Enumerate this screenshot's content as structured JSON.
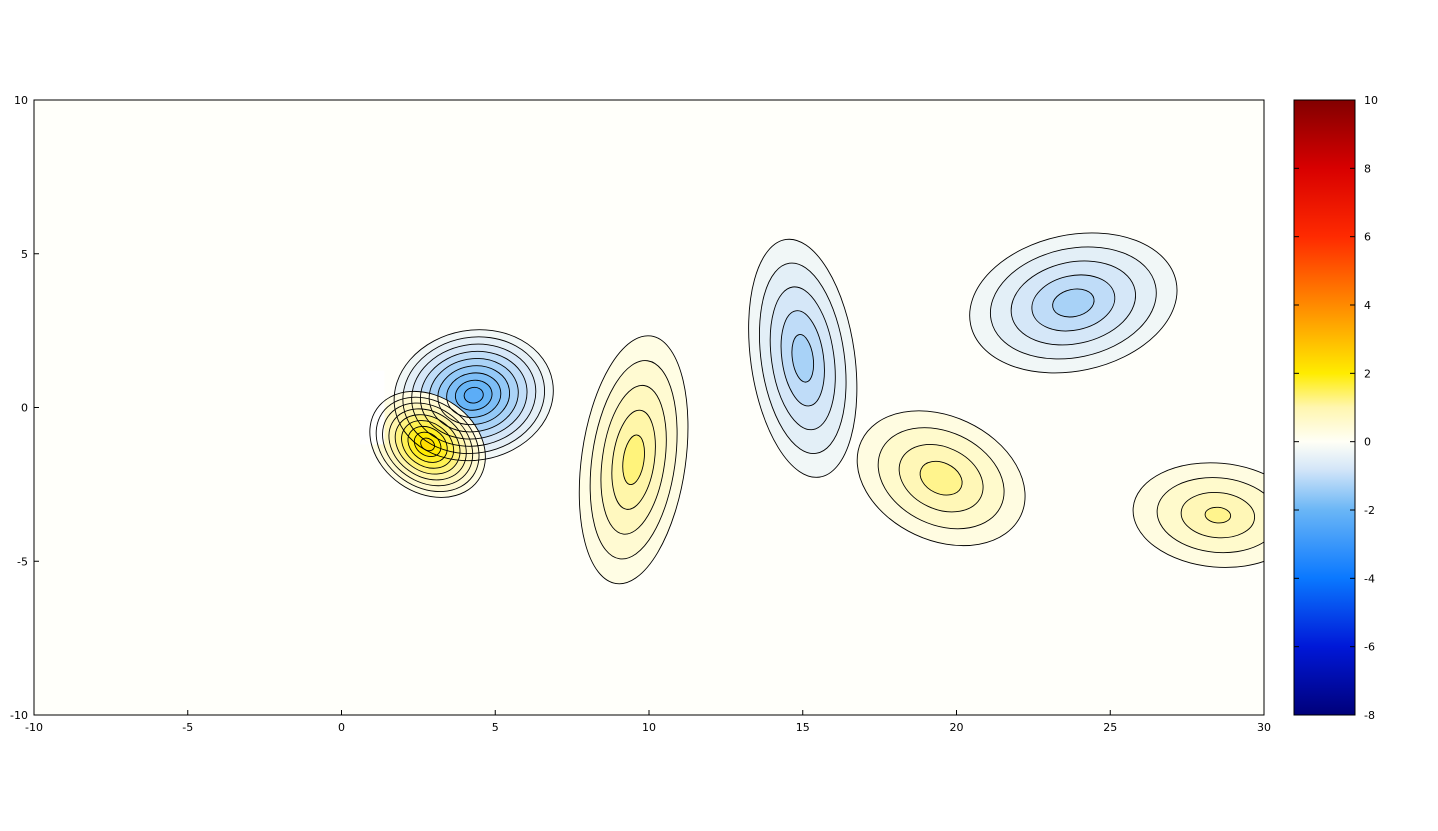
{
  "chart_data": {
    "type": "heatmap",
    "subtype": "filled-contour",
    "title": "",
    "xlabel": "",
    "ylabel": "",
    "xlim": [
      -10,
      30
    ],
    "ylim": [
      -10,
      10
    ],
    "x_ticks": [
      "-10",
      "-5",
      "0",
      "5",
      "10",
      "15",
      "20",
      "25",
      "30"
    ],
    "y_ticks": [
      "10",
      "5",
      "0",
      "-5",
      "-10"
    ],
    "grid": false,
    "colorbar": {
      "range": [
        -8,
        10
      ],
      "ticks": [
        "10",
        "8",
        "6",
        "4",
        "2",
        "0",
        "-2",
        "-4",
        "-6",
        "-8"
      ],
      "colormap": [
        {
          "v": -8,
          "c": "#00007a"
        },
        {
          "v": -6,
          "c": "#0018d8"
        },
        {
          "v": -4,
          "c": "#0a78ff"
        },
        {
          "v": -2,
          "c": "#6ab6f6"
        },
        {
          "v": -0.8,
          "c": "#d4e6f8"
        },
        {
          "v": 0,
          "c": "#fffff6"
        },
        {
          "v": 1,
          "c": "#fff6b0"
        },
        {
          "v": 2,
          "c": "#ffec00"
        },
        {
          "v": 4,
          "c": "#ff8a00"
        },
        {
          "v": 6,
          "c": "#ff2a00"
        },
        {
          "v": 8,
          "c": "#d80000"
        },
        {
          "v": 10,
          "c": "#820000"
        }
      ]
    },
    "vortices": [
      {
        "sign": "negative",
        "x": 4.3,
        "y": 0.4,
        "peak": -2.3,
        "levels": 9
      },
      {
        "sign": "positive",
        "x": 2.8,
        "y": -1.2,
        "peak": 2.3,
        "levels": 9
      },
      {
        "sign": "positive",
        "x": 9.5,
        "y": -1.7,
        "peak": 1.3,
        "levels": 5
      },
      {
        "sign": "negative",
        "x": 15.0,
        "y": 1.6,
        "peak": -1.3,
        "levels": 5
      },
      {
        "sign": "positive",
        "x": 19.5,
        "y": -2.3,
        "peak": 1.2,
        "levels": 4
      },
      {
        "sign": "negative",
        "x": 23.8,
        "y": 3.4,
        "peak": -1.3,
        "levels": 5
      },
      {
        "sign": "positive",
        "x": 28.5,
        "y": -3.5,
        "peak": 1.2,
        "levels": 4
      }
    ]
  }
}
